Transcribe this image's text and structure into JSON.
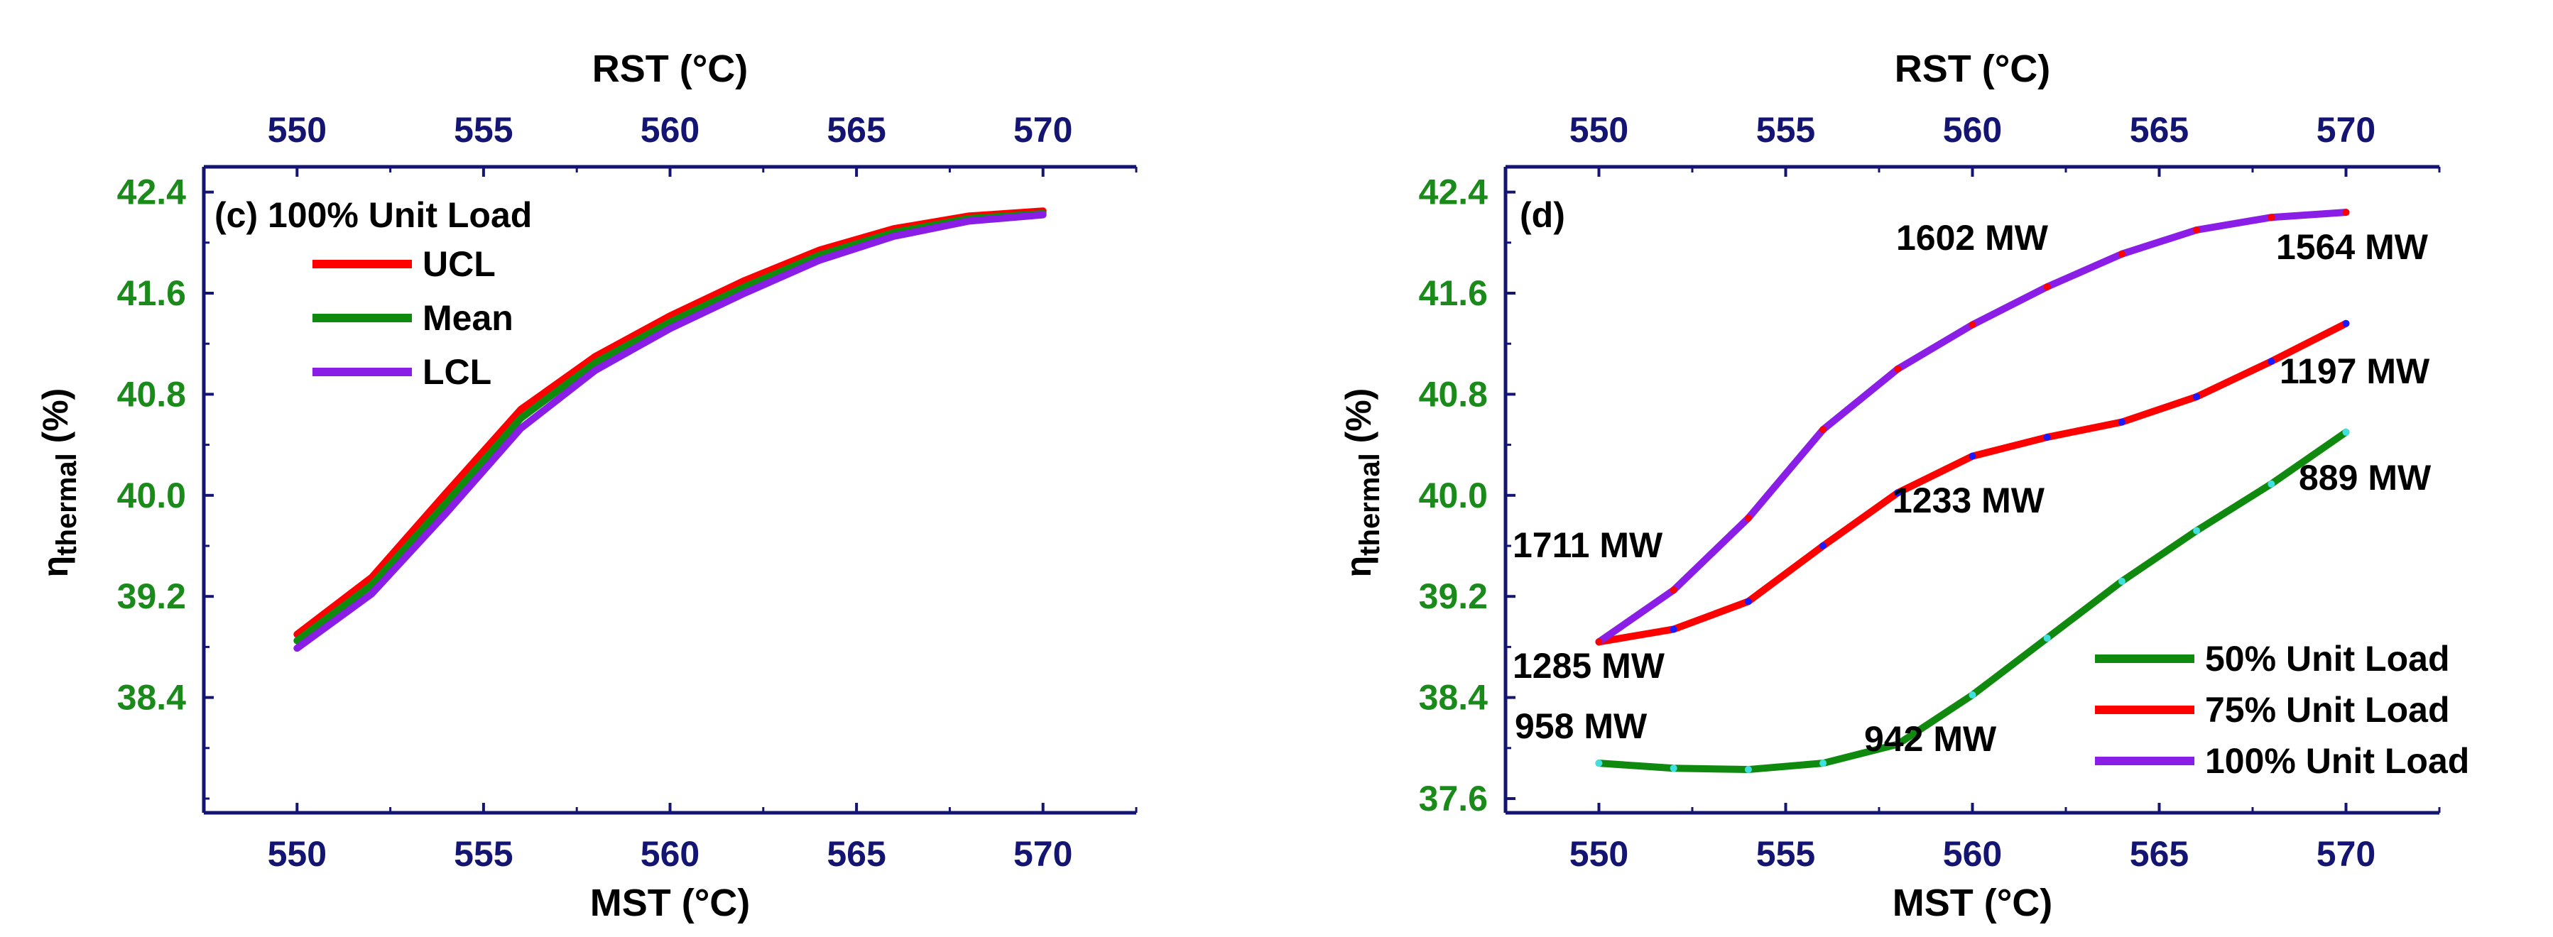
{
  "colors": {
    "axis": "#141472",
    "y_tick_text": "#1a8a1a",
    "x_tick_text": "#141472",
    "label_text": "#000000",
    "red": "#ff0000",
    "green": "#0f8a0f",
    "purple": "#8a1ee6",
    "cyan_marker": "#40e0e0",
    "blue_marker": "#1a1aff"
  },
  "chart_data": [
    {
      "type": "line",
      "panel_label": "(c) 100% Unit Load",
      "xlabel": "MST (°C)",
      "top_xlabel": "RST (°C)",
      "ylabel_main": "η",
      "ylabel_sub": "thermal",
      "ylabel_tail": " (%)",
      "xlim": [
        547.5,
        572.5
      ],
      "ylim": [
        37.6,
        42.6
      ],
      "x_ticks": [
        550,
        555,
        560,
        565,
        570
      ],
      "x_tick_labels": [
        "550",
        "555",
        "560",
        "565",
        "570"
      ],
      "top_tick_labels": [
        "550",
        "555",
        "560",
        "565",
        "570"
      ],
      "y_ticks": [
        38.4,
        39.2,
        40.0,
        40.8,
        41.6,
        42.4
      ],
      "y_tick_labels": [
        "38.4",
        "39.2",
        "40.0",
        "40.8",
        "41.6",
        "42.4"
      ],
      "x": [
        550,
        552,
        554,
        556,
        558,
        560,
        562,
        564,
        566,
        568,
        570
      ],
      "series": [
        {
          "name": "UCL",
          "color": "#ff0000",
          "values": [
            38.9,
            39.35,
            40.02,
            40.68,
            41.1,
            41.42,
            41.7,
            41.94,
            42.11,
            42.21,
            42.25
          ]
        },
        {
          "name": "Mean",
          "color": "#0f8a0f",
          "values": [
            38.85,
            39.29,
            39.94,
            40.61,
            41.05,
            41.37,
            41.65,
            41.9,
            42.08,
            42.19,
            42.23
          ]
        },
        {
          "name": "LCL",
          "color": "#8a1ee6",
          "values": [
            38.79,
            39.22,
            39.86,
            40.53,
            40.99,
            41.32,
            41.6,
            41.86,
            42.05,
            42.17,
            42.22
          ]
        }
      ],
      "legend": [
        {
          "label": "UCL",
          "color": "#ff0000"
        },
        {
          "label": "Mean",
          "color": "#0f8a0f"
        },
        {
          "label": "LCL",
          "color": "#8a1ee6"
        }
      ]
    },
    {
      "type": "line",
      "panel_label": "(d)",
      "xlabel": "MST (°C)",
      "top_xlabel": "RST (°C)",
      "ylabel_main": "η",
      "ylabel_sub": "thermal",
      "ylabel_tail": " (%)",
      "xlim": [
        547.5,
        572.5
      ],
      "ylim": [
        37.6,
        42.6
      ],
      "x_ticks": [
        550,
        555,
        560,
        565,
        570
      ],
      "x_tick_labels": [
        "550",
        "555",
        "560",
        "565",
        "570"
      ],
      "top_tick_labels": [
        "550",
        "555",
        "560",
        "565",
        "570"
      ],
      "y_ticks": [
        37.6,
        38.4,
        39.2,
        40.0,
        40.8,
        41.6,
        42.4
      ],
      "y_tick_labels": [
        "37.6",
        "38.4",
        "39.2",
        "40.0",
        "40.8",
        "41.6",
        "42.4"
      ],
      "x": [
        550,
        552,
        554,
        556,
        558,
        560,
        562,
        564,
        566,
        568,
        570
      ],
      "series": [
        {
          "name": "50% Unit Load",
          "color": "#0f8a0f",
          "marker": "#40e0e0",
          "values": [
            37.88,
            37.84,
            37.83,
            37.88,
            38.03,
            38.42,
            38.87,
            39.32,
            39.72,
            40.09,
            40.5
          ]
        },
        {
          "name": "75% Unit Load",
          "color": "#ff0000",
          "marker": "#1a1aff",
          "values": [
            38.84,
            38.94,
            39.16,
            39.6,
            40.02,
            40.31,
            40.46,
            40.58,
            40.78,
            41.06,
            41.36
          ]
        },
        {
          "name": "100% Unit Load",
          "color": "#8a1ee6",
          "marker": "#ff0000",
          "values": [
            38.84,
            39.25,
            39.82,
            40.52,
            41.0,
            41.35,
            41.65,
            41.91,
            42.1,
            42.2,
            42.24
          ]
        }
      ],
      "annotations": [
        "1711 MW",
        "1285 MW",
        "958 MW",
        "942 MW",
        "1233 MW",
        "1602 MW",
        "1564 MW",
        "1197 MW",
        "889 MW"
      ],
      "legend": [
        {
          "label": "50% Unit Load",
          "color": "#0f8a0f"
        },
        {
          "label": "75% Unit Load",
          "color": "#ff0000"
        },
        {
          "label": "100% Unit Load",
          "color": "#8a1ee6"
        }
      ]
    }
  ]
}
